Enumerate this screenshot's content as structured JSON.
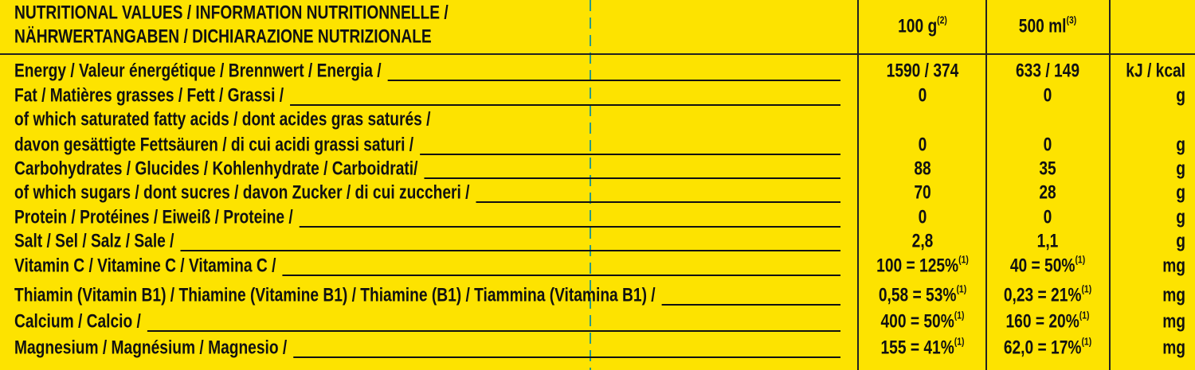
{
  "header": {
    "title": [
      "NUTRITIONAL VALUES / INFORMATION NUTRITIONNELLE /",
      "NÄHRWERTANGABEN / DICHIARAZIONE NUTRIZIONALE"
    ],
    "columns": [
      {
        "text": "100 g",
        "note": "(2)"
      },
      {
        "text": "500 ml",
        "note": "(3)"
      }
    ]
  },
  "table": {
    "rows": [
      {
        "label": [
          "Energy / Valeur énergétique / Brennwert / Energia /"
        ],
        "per_100g": {
          "text": "1590 / 374"
        },
        "per_500ml": {
          "text": "633 / 149"
        },
        "unit": "kJ / kcal"
      },
      {
        "label": [
          "Fat / Matières grasses / Fett / Grassi /"
        ],
        "per_100g": {
          "text": "0"
        },
        "per_500ml": {
          "text": "0"
        },
        "unit": "g"
      },
      {
        "label": [
          "of which saturated fatty acids / dont acides gras saturés /",
          "davon gesättigte Fettsäuren / di cui acidi grassi saturi /"
        ],
        "per_100g": {
          "text": "0"
        },
        "per_500ml": {
          "text": "0"
        },
        "unit": "g"
      },
      {
        "label": [
          "Carbohydrates / Glucides  / Kohlenhydrate / Carboidrati/"
        ],
        "per_100g": {
          "text": "88"
        },
        "per_500ml": {
          "text": "35"
        },
        "unit": "g"
      },
      {
        "label": [
          "of which sugars / dont sucres / davon Zucker / di cui zuccheri /"
        ],
        "per_100g": {
          "text": "70"
        },
        "per_500ml": {
          "text": "28"
        },
        "unit": "g"
      },
      {
        "label": [
          "Protein / Protéines  / Eiweiß / Proteine /"
        ],
        "per_100g": {
          "text": "0"
        },
        "per_500ml": {
          "text": "0"
        },
        "unit": "g"
      },
      {
        "label": [
          "Salt / Sel / Salz / Sale /"
        ],
        "per_100g": {
          "text": "2,8"
        },
        "per_500ml": {
          "text": "1,1"
        },
        "unit": "g"
      },
      {
        "label": [
          "Vitamin C / Vitamine C / Vitamina C /"
        ],
        "per_100g": {
          "text": "100 = 125%",
          "note": "(1)"
        },
        "per_500ml": {
          "text": "40 = 50%",
          "note": "(1)"
        },
        "unit": "mg"
      },
      {
        "label": [
          "Thiamin (Vitamin B1) / Thiamine (Vitamine B1) / Thiamine (B1) / Tiammina (Vitamina B1) /"
        ],
        "per_100g": {
          "text": "0,58 = 53%",
          "note": "(1)"
        },
        "per_500ml": {
          "text": "0,23 = 21%",
          "note": "(1)"
        },
        "unit": "mg"
      },
      {
        "label": [
          "Calcium / Calcio /"
        ],
        "per_100g": {
          "text": "400 = 50%",
          "note": "(1)"
        },
        "per_500ml": {
          "text": "160 = 20%",
          "note": "(1)"
        },
        "unit": "mg"
      },
      {
        "label": [
          "Magnesium / Magnésium / Magnesio /"
        ],
        "per_100g": {
          "text": "155 = 41%",
          "note": "(1)"
        },
        "per_500ml": {
          "text": "62,0 = 17%",
          "note": "(1)"
        },
        "unit": "mg"
      }
    ]
  }
}
